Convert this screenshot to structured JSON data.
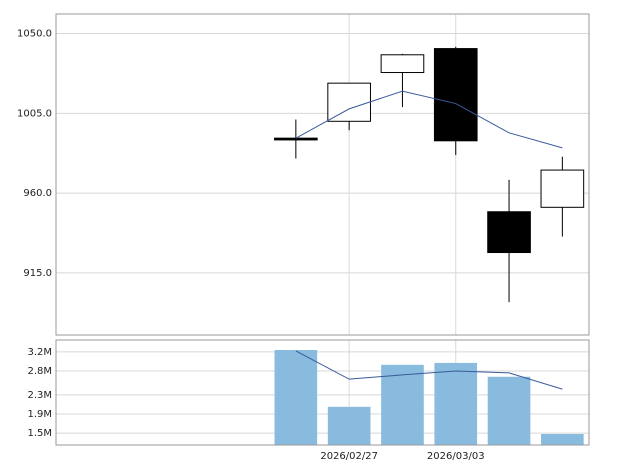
{
  "chart_data": [
    {
      "type": "candlestick",
      "open": [
        null,
        null,
        null,
        null,
        991,
        1000.5,
        1028,
        1041.5,
        949.5,
        952
      ],
      "high": [
        null,
        null,
        null,
        null,
        1001.5,
        1022,
        1038.5,
        1042.5,
        967.5,
        980.5
      ],
      "low": [
        null,
        null,
        null,
        null,
        979.5,
        995.5,
        1008.5,
        981.5,
        898.5,
        935.5
      ],
      "close": [
        null,
        null,
        null,
        null,
        990,
        1022,
        1038,
        989.5,
        926.5,
        973
      ],
      "up_color": "#ffffff",
      "down_color": "#000000",
      "ma": {
        "color": "#3a5a9a",
        "values": [
          null,
          null,
          null,
          null,
          991,
          1007.5,
          1017.5,
          1010.5,
          994,
          985.5
        ]
      },
      "ylim": [
        880,
        1061
      ],
      "yticks": [
        {
          "value": 915,
          "label": "915.0"
        },
        {
          "value": 960,
          "label": "960.0"
        },
        {
          "value": 1005,
          "label": "1005.0"
        },
        {
          "value": 1050,
          "label": "1050.0"
        }
      ],
      "grid": true
    },
    {
      "type": "bar",
      "categories": [
        null,
        null,
        null,
        null,
        null,
        "2026/02/27",
        null,
        "2026/03/03",
        null,
        null
      ],
      "values": [
        null,
        null,
        null,
        null,
        3240000,
        2050000,
        2930000,
        2970000,
        2680000,
        1480000
      ],
      "color": "#88bbdd",
      "ma": {
        "color": "#3a5a9a",
        "values": [
          null,
          null,
          null,
          null,
          3220000,
          2630000,
          2720000,
          2800000,
          2760000,
          2420000
        ]
      },
      "ylim": [
        1250000,
        3450000
      ],
      "yticks": [
        {
          "value": 1500000,
          "label": "1.5M"
        },
        {
          "value": 1900000,
          "label": "1.9M"
        },
        {
          "value": 2300000,
          "label": "2.3M"
        },
        {
          "value": 2800000,
          "label": "2.8M"
        },
        {
          "value": 3200000,
          "label": "3.2M"
        }
      ],
      "grid": true
    }
  ]
}
